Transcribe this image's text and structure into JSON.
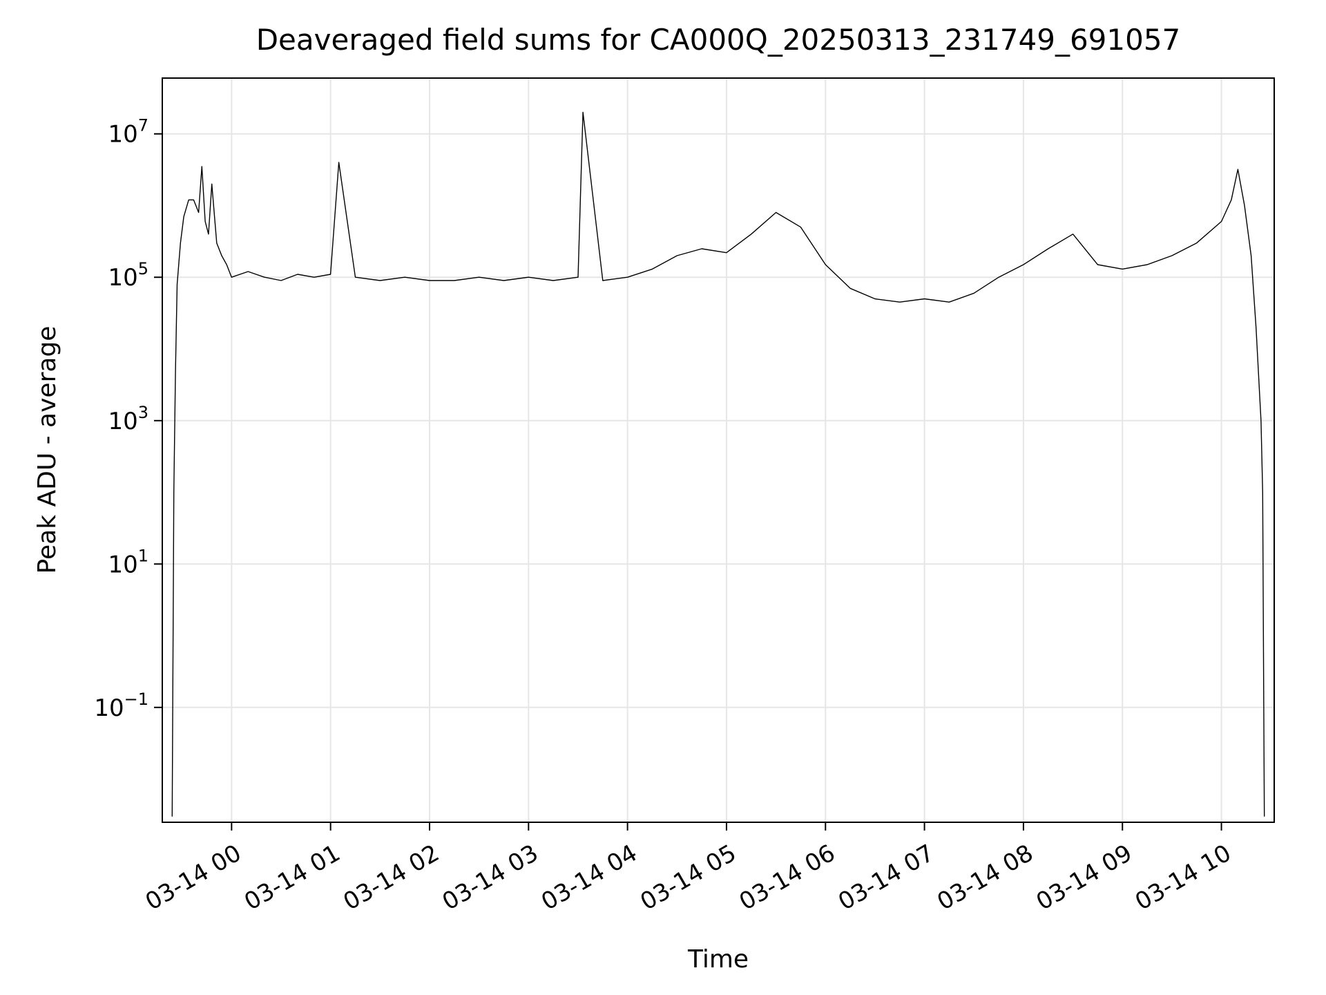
{
  "chart_data": {
    "type": "line",
    "title": "Deaveraged field sums for CA000Q_20250313_231749_691057",
    "xlabel": "Time",
    "ylabel": "Peak ADU - average",
    "yscale": "log",
    "grid": true,
    "line_color": "#000000",
    "x_tick_labels": [
      "03-14 00",
      "03-14 01",
      "03-14 02",
      "03-14 03",
      "03-14 04",
      "03-14 05",
      "03-14 06",
      "03-14 07",
      "03-14 08",
      "03-14 09",
      "03-14 10"
    ],
    "y_ticks": [
      {
        "value": 0.1,
        "base": "10",
        "exp": "−1"
      },
      {
        "value": 10,
        "base": "10",
        "exp": "1"
      },
      {
        "value": 1000,
        "base": "10",
        "exp": "3"
      },
      {
        "value": 100000,
        "base": "10",
        "exp": "5"
      },
      {
        "value": 10000000,
        "base": "10",
        "exp": "7"
      }
    ],
    "xlim": [
      "2025-03-13 23:18",
      "2025-03-14 10:32"
    ],
    "ylim": [
      0.0025,
      60000000
    ],
    "series": [
      {
        "x": [
          "2025-03-13 23:24",
          "2025-03-13 23:25",
          "2025-03-13 23:26",
          "2025-03-13 23:27",
          "2025-03-13 23:29",
          "2025-03-13 23:31",
          "2025-03-13 23:34",
          "2025-03-13 23:37",
          "2025-03-13 23:40",
          "2025-03-13 23:42",
          "2025-03-13 23:44",
          "2025-03-13 23:46",
          "2025-03-13 23:48",
          "2025-03-13 23:51",
          "2025-03-13 23:54",
          "2025-03-13 23:57",
          "2025-03-14 00:00",
          "2025-03-14 00:10",
          "2025-03-14 00:20",
          "2025-03-14 00:30",
          "2025-03-14 00:40",
          "2025-03-14 00:50",
          "2025-03-14 01:00",
          "2025-03-14 01:05",
          "2025-03-14 01:15",
          "2025-03-14 01:30",
          "2025-03-14 01:45",
          "2025-03-14 02:00",
          "2025-03-14 02:15",
          "2025-03-14 02:30",
          "2025-03-14 02:45",
          "2025-03-14 03:00",
          "2025-03-14 03:15",
          "2025-03-14 03:30",
          "2025-03-14 03:33",
          "2025-03-14 03:45",
          "2025-03-14 04:00",
          "2025-03-14 04:15",
          "2025-03-14 04:30",
          "2025-03-14 04:45",
          "2025-03-14 05:00",
          "2025-03-14 05:15",
          "2025-03-14 05:30",
          "2025-03-14 05:45",
          "2025-03-14 06:00",
          "2025-03-14 06:15",
          "2025-03-14 06:30",
          "2025-03-14 06:45",
          "2025-03-14 07:00",
          "2025-03-14 07:15",
          "2025-03-14 07:30",
          "2025-03-14 07:45",
          "2025-03-14 08:00",
          "2025-03-14 08:15",
          "2025-03-14 08:30",
          "2025-03-14 08:45",
          "2025-03-14 09:00",
          "2025-03-14 09:15",
          "2025-03-14 09:30",
          "2025-03-14 09:45",
          "2025-03-14 10:00",
          "2025-03-14 10:06",
          "2025-03-14 10:10",
          "2025-03-14 10:14",
          "2025-03-14 10:18",
          "2025-03-14 10:21",
          "2025-03-14 10:24",
          "2025-03-14 10:25",
          "2025-03-14 10:26"
        ],
        "y": [
          0.003,
          100,
          5000,
          80000,
          300000,
          700000,
          1200000,
          1200000,
          800000,
          3500000,
          600000,
          400000,
          2000000,
          300000,
          200000,
          150000,
          100000,
          120000,
          100000,
          90000,
          110000,
          100000,
          110000,
          4000000,
          100000,
          90000,
          100000,
          90000,
          90000,
          100000,
          90000,
          100000,
          90000,
          100000,
          20000000,
          90000,
          100000,
          130000,
          200000,
          250000,
          220000,
          400000,
          800000,
          500000,
          150000,
          70000,
          50000,
          45000,
          50000,
          45000,
          60000,
          100000,
          150000,
          250000,
          400000,
          150000,
          130000,
          150000,
          200000,
          300000,
          600000,
          1200000,
          3200000,
          1000000,
          200000,
          20000,
          1000,
          100,
          0.003
        ]
      }
    ]
  }
}
